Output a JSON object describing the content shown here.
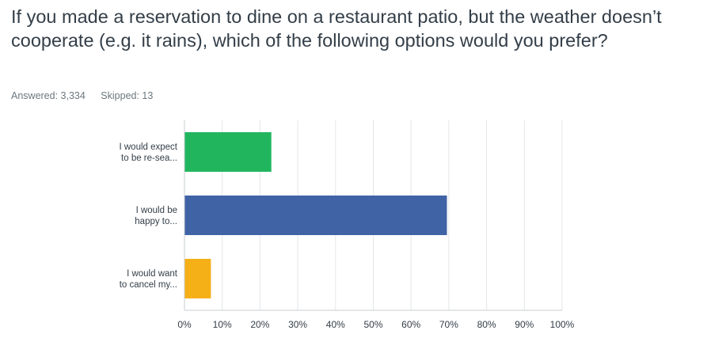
{
  "question": {
    "title": "If you made a reservation to dine on a restaurant patio, but the weather doesn’t cooperate (e.g. it rains), which of the following options would you prefer?"
  },
  "stats": {
    "answered": "Answered: 3,334",
    "skipped": "Skipped: 13"
  },
  "chart_data": {
    "type": "bar",
    "orientation": "horizontal",
    "categories": [
      [
        "I would expect",
        "to be re-sea..."
      ],
      [
        "I would be",
        "happy to..."
      ],
      [
        "I would want",
        "to cancel my..."
      ]
    ],
    "values": [
      23,
      69.5,
      7
    ],
    "unit": "%",
    "xlim": [
      0,
      100
    ],
    "ticks": [
      "0%",
      "10%",
      "20%",
      "30%",
      "40%",
      "50%",
      "60%",
      "70%",
      "80%",
      "90%",
      "100%"
    ],
    "grid": true,
    "colors": [
      "#21b65e",
      "#4063a6",
      "#f5b018"
    ]
  }
}
